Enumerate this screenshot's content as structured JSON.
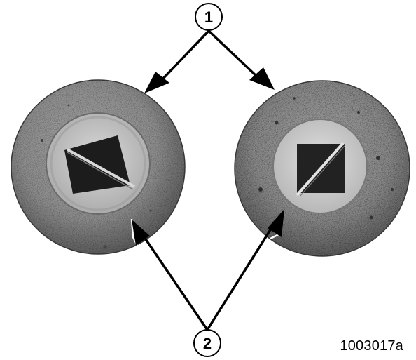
{
  "callouts": {
    "top_label": "1",
    "bottom_label": "2"
  },
  "figure_id": "1003017a",
  "colors": {
    "background": "#ffffff",
    "ink": "#000000",
    "plug_rim": "#8a8a8a",
    "plug_rim_dark": "#5e5e5e",
    "plug_center": "#c9c9c9",
    "hex_socket": "#1e1e1e"
  }
}
